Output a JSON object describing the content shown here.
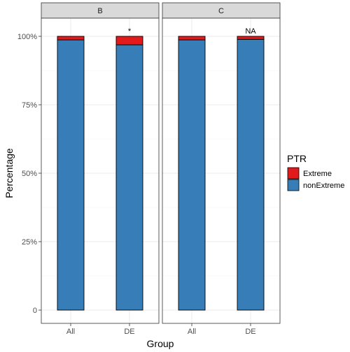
{
  "chart_data": {
    "type": "bar",
    "stacked": true,
    "xlabel": "Group",
    "ylabel": "Percentage",
    "ylim": [
      0,
      100
    ],
    "y_ticks": [
      {
        "value": 0,
        "label": "0"
      },
      {
        "value": 25,
        "label": "25%"
      },
      {
        "value": 50,
        "label": "50%"
      },
      {
        "value": 75,
        "label": "75%"
      },
      {
        "value": 100,
        "label": "100%"
      }
    ],
    "grid": true,
    "legend": {
      "title": "PTR",
      "position": "right",
      "items": [
        {
          "name": "Extreme",
          "color": "#e31a1c"
        },
        {
          "name": "nonExtreme",
          "color": "#377eb8"
        }
      ]
    },
    "panels": [
      {
        "facet": "B",
        "categories": [
          "All",
          "DE"
        ],
        "series": [
          {
            "name": "nonExtreme",
            "values": [
              98.7,
              96.9
            ]
          },
          {
            "name": "Extreme",
            "values": [
              1.3,
              3.1
            ]
          }
        ],
        "annotations": [
          {
            "category": "DE",
            "text": "*"
          }
        ]
      },
      {
        "facet": "C",
        "categories": [
          "All",
          "DE"
        ],
        "series": [
          {
            "name": "nonExtreme",
            "values": [
              98.7,
              98.9
            ]
          },
          {
            "name": "Extreme",
            "values": [
              1.3,
              1.1
            ]
          }
        ],
        "annotations": [
          {
            "category": "DE",
            "text": "NA"
          }
        ]
      }
    ]
  }
}
